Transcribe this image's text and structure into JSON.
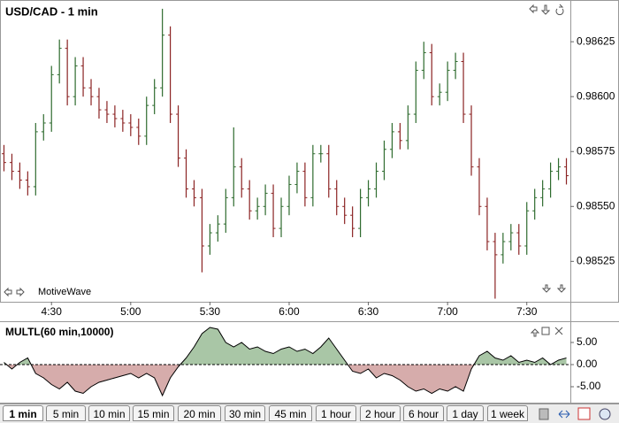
{
  "chart_data": [
    {
      "type": "ohlc",
      "title": "USD/CAD - 1 min",
      "watermark": "MotiveWave",
      "categories": [
        null,
        null,
        null,
        null,
        null,
        null,
        "4:30",
        null,
        null,
        null,
        null,
        null,
        null,
        null,
        null,
        null,
        "5:00",
        null,
        null,
        null,
        null,
        null,
        null,
        null,
        null,
        null,
        "5:30",
        null,
        null,
        null,
        null,
        null,
        null,
        null,
        null,
        null,
        "6:00",
        null,
        null,
        null,
        null,
        null,
        null,
        null,
        null,
        null,
        "6:30",
        null,
        null,
        null,
        null,
        null,
        null,
        null,
        null,
        null,
        "7:00",
        null,
        null,
        null,
        null,
        null,
        null,
        null,
        null,
        null,
        "7:30",
        null,
        null,
        null,
        null,
        null
      ],
      "open": [
        0.98574,
        0.9857,
        0.98566,
        0.98562,
        0.98559,
        0.98584,
        0.98588,
        0.9861,
        0.98622,
        0.986,
        0.98614,
        0.98604,
        0.986,
        0.98594,
        0.98592,
        0.9859,
        0.98588,
        0.98586,
        0.98582,
        0.98596,
        0.98604,
        0.98628,
        0.98592,
        0.98572,
        0.98558,
        0.98554,
        0.98532,
        0.98538,
        0.98542,
        0.98554,
        0.98568,
        0.98558,
        0.98548,
        0.9855,
        0.98556,
        0.9854,
        0.9855,
        0.9856,
        0.98566,
        0.98554,
        0.98574,
        0.98574,
        0.98558,
        0.9855,
        0.98546,
        0.9854,
        0.98554,
        0.98558,
        0.98566,
        0.98576,
        0.98584,
        0.9858,
        0.98592,
        0.98612,
        0.9862,
        0.986,
        0.98602,
        0.98612,
        0.98616,
        0.98592,
        0.98568,
        0.9855,
        0.98534,
        0.98528,
        0.98534,
        0.98538,
        0.98532,
        0.98548,
        0.98554,
        0.98558,
        0.98566,
        0.98568
      ],
      "high": [
        0.98578,
        0.98574,
        0.9857,
        0.98566,
        0.98588,
        0.98592,
        0.98614,
        0.98626,
        0.98626,
        0.98618,
        0.98618,
        0.98608,
        0.98604,
        0.98598,
        0.98596,
        0.98594,
        0.98592,
        0.9859,
        0.986,
        0.98608,
        0.9864,
        0.98632,
        0.98596,
        0.98576,
        0.98562,
        0.98558,
        0.98542,
        0.98546,
        0.98558,
        0.98586,
        0.98572,
        0.98562,
        0.98554,
        0.9856,
        0.9856,
        0.98554,
        0.98564,
        0.9857,
        0.9857,
        0.98578,
        0.98578,
        0.98578,
        0.98562,
        0.98554,
        0.9855,
        0.98558,
        0.98562,
        0.9857,
        0.9858,
        0.98588,
        0.98588,
        0.98596,
        0.98616,
        0.98625,
        0.98624,
        0.98606,
        0.98616,
        0.9862,
        0.9862,
        0.98596,
        0.98572,
        0.98554,
        0.98538,
        0.98538,
        0.98542,
        0.98542,
        0.98552,
        0.98558,
        0.98562,
        0.9857,
        0.98572,
        0.98572
      ],
      "low": [
        0.98566,
        0.98562,
        0.98558,
        0.98555,
        0.98555,
        0.9858,
        0.98584,
        0.98606,
        0.98596,
        0.98596,
        0.986,
        0.98596,
        0.9859,
        0.98588,
        0.98586,
        0.98584,
        0.98582,
        0.98578,
        0.98578,
        0.98592,
        0.986,
        0.98588,
        0.98568,
        0.98554,
        0.9855,
        0.9852,
        0.98528,
        0.98534,
        0.98538,
        0.9855,
        0.98554,
        0.98544,
        0.98544,
        0.98546,
        0.98536,
        0.98536,
        0.98546,
        0.98556,
        0.9855,
        0.9855,
        0.9857,
        0.98554,
        0.98546,
        0.98542,
        0.98536,
        0.98536,
        0.9855,
        0.98554,
        0.98562,
        0.98572,
        0.98576,
        0.98576,
        0.98588,
        0.98608,
        0.98596,
        0.98596,
        0.98598,
        0.98608,
        0.98588,
        0.98564,
        0.98546,
        0.9853,
        0.98508,
        0.98524,
        0.9853,
        0.98528,
        0.98528,
        0.98544,
        0.9855,
        0.98554,
        0.98562,
        0.9856
      ],
      "close": [
        0.9857,
        0.98566,
        0.98562,
        0.98559,
        0.98584,
        0.98588,
        0.9861,
        0.98622,
        0.986,
        0.98614,
        0.98604,
        0.986,
        0.98594,
        0.98592,
        0.9859,
        0.98588,
        0.98586,
        0.98582,
        0.98596,
        0.98604,
        0.98628,
        0.98592,
        0.98572,
        0.98558,
        0.98554,
        0.98532,
        0.98538,
        0.98542,
        0.98554,
        0.98568,
        0.98558,
        0.98548,
        0.9855,
        0.98556,
        0.9854,
        0.9855,
        0.9856,
        0.98566,
        0.98554,
        0.98574,
        0.98574,
        0.98558,
        0.9855,
        0.98546,
        0.9854,
        0.98554,
        0.98558,
        0.98566,
        0.98576,
        0.98584,
        0.9858,
        0.98592,
        0.98612,
        0.9862,
        0.986,
        0.98602,
        0.98612,
        0.98616,
        0.98592,
        0.98568,
        0.9855,
        0.98534,
        0.98528,
        0.98534,
        0.98538,
        0.98532,
        0.98548,
        0.98554,
        0.98558,
        0.98566,
        0.98568,
        0.98564
      ],
      "up_color": "#2e6b2e",
      "down_color": "#8b2323",
      "ylim": [
        0.98507,
        0.98644
      ],
      "yticks": [
        0.98525,
        {
          "value": 0.9855,
          "label": "0.98550"
        },
        0.98575,
        {
          "value": 0.986,
          "label": "0.98600"
        },
        0.98625
      ]
    },
    {
      "type": "area",
      "title": "MULTL(60 min,10000)",
      "values": [
        0.5,
        -1,
        0.5,
        1.5,
        -2,
        -3,
        -4.5,
        -5.5,
        -4,
        -6,
        -6.5,
        -5,
        -4,
        -3.5,
        -3,
        -2.5,
        -2,
        -3,
        -2,
        -3,
        -7,
        -3,
        -0.5,
        1.5,
        4,
        7,
        8.4,
        8,
        5,
        4,
        5,
        3.5,
        4,
        3,
        2.5,
        3.5,
        4,
        3,
        3.5,
        2.5,
        4,
        6,
        3.5,
        1,
        -1.5,
        -2,
        -1,
        -3,
        -2,
        -2.5,
        -3.5,
        -5,
        -6,
        -5.5,
        -6.5,
        -5.5,
        -6,
        -5,
        -6,
        -1,
        2,
        3,
        1.5,
        1,
        2,
        0.5,
        1,
        0.5,
        1.5,
        0,
        1,
        1.5
      ],
      "positive_color": "#a9c6a6",
      "negative_color": "#d6acab",
      "line_color": "#000000",
      "ylim": [
        -8.6,
        9
      ],
      "yticks": [
        {
          "value": -5,
          "label": "-5.00"
        },
        {
          "value": 0,
          "label": "0.00"
        },
        {
          "value": 5,
          "label": "5.00"
        }
      ]
    }
  ],
  "tabs": [
    "1 min",
    "5 min",
    "10 min",
    "15 min",
    "20 min",
    "30 min",
    "45 min",
    "1 hour",
    "2 hour",
    "6 hour",
    "1 day",
    "1 week"
  ],
  "active_tab": 0
}
